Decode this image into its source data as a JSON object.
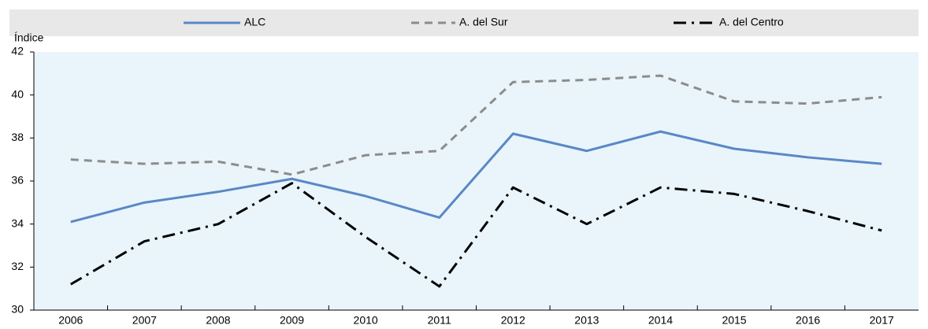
{
  "chart_data": {
    "type": "line",
    "y_label": "Índice",
    "categories": [
      "2006",
      "2007",
      "2008",
      "2009",
      "2010",
      "2011",
      "2012",
      "2013",
      "2014",
      "2015",
      "2016",
      "2017"
    ],
    "series": [
      {
        "name": "ALC",
        "color": "#5b87c6",
        "dash": "solid",
        "values": [
          34.1,
          35.0,
          35.5,
          36.1,
          35.3,
          34.3,
          38.2,
          37.4,
          38.3,
          37.5,
          37.1,
          36.8
        ]
      },
      {
        "name": "A. del Sur",
        "color": "#8c8c8c",
        "dash": "dash",
        "values": [
          37.0,
          36.8,
          36.9,
          36.3,
          37.2,
          37.4,
          40.6,
          40.7,
          40.9,
          39.7,
          39.6,
          39.9
        ]
      },
      {
        "name": "A. del Centro",
        "color": "#000000",
        "dash": "dashdot",
        "values": [
          31.2,
          33.2,
          34.0,
          35.9,
          33.4,
          31.1,
          35.7,
          34.0,
          35.7,
          35.4,
          34.6,
          33.7
        ]
      }
    ],
    "ylim": [
      30,
      42
    ],
    "yticks": [
      30,
      32,
      34,
      36,
      38,
      40,
      42
    ],
    "grid": false,
    "legend": "top"
  }
}
